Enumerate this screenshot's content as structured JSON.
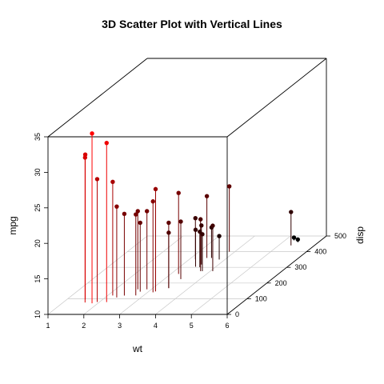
{
  "chart_data": {
    "type": "scatter3d",
    "title": "3D Scatter Plot with Vertical Lines",
    "xlabel": "wt",
    "ylabel": "disp",
    "zlabel": "mpg",
    "xlim": [
      1,
      6
    ],
    "ylim": [
      0,
      500
    ],
    "zlim": [
      10,
      35
    ],
    "x_ticks": [
      "1",
      "2",
      "3",
      "4",
      "5",
      "6"
    ],
    "y_ticks": [
      "0",
      "100",
      "200",
      "300",
      "400",
      "500"
    ],
    "z_ticks": [
      "10",
      "15",
      "20",
      "25",
      "30",
      "35"
    ],
    "grid": true,
    "drop_lines": true,
    "color_scale": {
      "low": "#000000",
      "high": "#ff0000"
    },
    "points": [
      {
        "x": 2.62,
        "y": 160,
        "z": 21.0
      },
      {
        "x": 2.875,
        "y": 160,
        "z": 21.0
      },
      {
        "x": 2.32,
        "y": 108,
        "z": 22.8
      },
      {
        "x": 3.215,
        "y": 258,
        "z": 21.4
      },
      {
        "x": 3.44,
        "y": 360,
        "z": 18.7
      },
      {
        "x": 3.46,
        "y": 225,
        "z": 18.1
      },
      {
        "x": 3.57,
        "y": 360,
        "z": 14.3
      },
      {
        "x": 3.19,
        "y": 146.7,
        "z": 24.4
      },
      {
        "x": 3.15,
        "y": 140.8,
        "z": 22.8
      },
      {
        "x": 3.44,
        "y": 167.6,
        "z": 19.2
      },
      {
        "x": 3.44,
        "y": 167.6,
        "z": 17.8
      },
      {
        "x": 4.07,
        "y": 275.8,
        "z": 16.4
      },
      {
        "x": 3.73,
        "y": 275.8,
        "z": 17.3
      },
      {
        "x": 3.78,
        "y": 275.8,
        "z": 15.2
      },
      {
        "x": 5.25,
        "y": 472,
        "z": 10.4
      },
      {
        "x": 5.424,
        "y": 460,
        "z": 10.4
      },
      {
        "x": 5.345,
        "y": 440,
        "z": 14.7
      },
      {
        "x": 2.2,
        "y": 78.7,
        "z": 32.4
      },
      {
        "x": 1.615,
        "y": 75.7,
        "z": 30.4
      },
      {
        "x": 1.835,
        "y": 71.1,
        "z": 33.9
      },
      {
        "x": 2.465,
        "y": 120.1,
        "z": 21.5
      },
      {
        "x": 3.52,
        "y": 318,
        "z": 15.5
      },
      {
        "x": 3.435,
        "y": 304,
        "z": 15.2
      },
      {
        "x": 3.84,
        "y": 350,
        "z": 13.3
      },
      {
        "x": 3.845,
        "y": 400,
        "z": 19.2
      },
      {
        "x": 1.935,
        "y": 79,
        "z": 27.3
      },
      {
        "x": 2.14,
        "y": 120.3,
        "z": 26.0
      },
      {
        "x": 1.513,
        "y": 95.1,
        "z": 30.4
      },
      {
        "x": 3.17,
        "y": 351,
        "z": 15.8
      },
      {
        "x": 2.77,
        "y": 145,
        "z": 19.7
      },
      {
        "x": 3.57,
        "y": 301,
        "z": 15.0
      },
      {
        "x": 2.78,
        "y": 121,
        "z": 21.4
      }
    ]
  }
}
